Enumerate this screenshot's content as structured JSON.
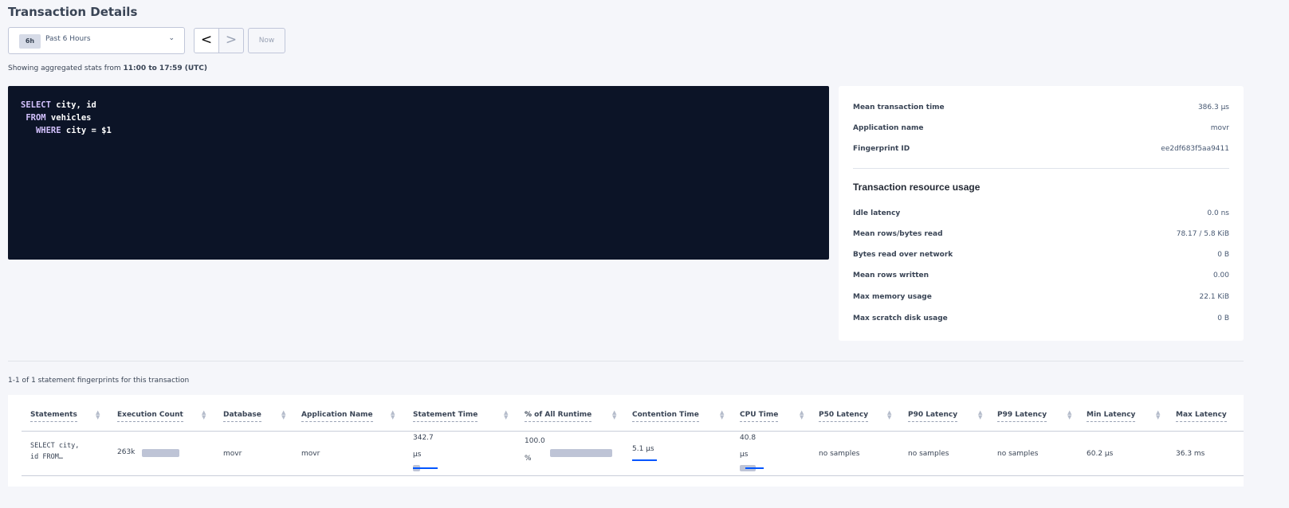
{
  "page_title": "Transaction Details",
  "time_picker": {
    "badge": "6h",
    "label": "Past 6 Hours",
    "prev": "<",
    "next": ">",
    "now": "Now"
  },
  "subtitle": {
    "prefix": "Showing aggregated stats from ",
    "range": "11:00 to 17:59 (UTC)"
  },
  "sql": {
    "l1k": "SELECT",
    "l1": " city, id",
    "l2k": " FROM",
    "l2": " vehicles",
    "l3k": "   WHERE",
    "l3": " city = $1"
  },
  "summary": [
    {
      "label": "Mean transaction time",
      "value": "386.3 µs"
    },
    {
      "label": "Application name",
      "value": "movr"
    },
    {
      "label": "Fingerprint ID",
      "value": "ee2df683f5aa9411"
    }
  ],
  "resource_title": "Transaction resource usage",
  "resources": [
    {
      "label": "Idle latency",
      "value": "0.0 ns"
    },
    {
      "label": "Mean rows/bytes read",
      "value": "78.17 / 5.8 KiB"
    },
    {
      "label": "Bytes read over network",
      "value": "0 B"
    },
    {
      "label": "Mean rows written",
      "value": "0.00"
    },
    {
      "label": "Max memory usage",
      "value": "22.1 KiB"
    },
    {
      "label": "Max scratch disk usage",
      "value": "0 B"
    }
  ],
  "fingerprint_count": "1-1 of 1 statement fingerprints for this transaction",
  "table": {
    "headers": [
      "Statements",
      "Execution Count",
      "Database",
      "Application Name",
      "Statement Time",
      "% of All Runtime",
      "Contention Time",
      "CPU Time",
      "P50 Latency",
      "P90 Latency",
      "P99 Latency",
      "Min Latency",
      "Max Latency"
    ],
    "row": {
      "statement_1": "SELECT city,",
      "statement_2": "id FROM…",
      "exec_count": "263k",
      "database": "movr",
      "app": "movr",
      "stmt_time_1": "342.7",
      "stmt_time_2": "µs",
      "pct_1": "100.0",
      "pct_2": "%",
      "contention": "5.1 µs",
      "cpu_1": "40.8",
      "cpu_2": "µs",
      "p50": "no samples",
      "p90": "no samples",
      "p99": "no samples",
      "min": "60.2 µs",
      "max": "36.3 ms"
    }
  },
  "colors": {
    "code_bg": "#0c1427",
    "bar_blue": "#0055ff",
    "bar_gray": "#bec4d6"
  }
}
